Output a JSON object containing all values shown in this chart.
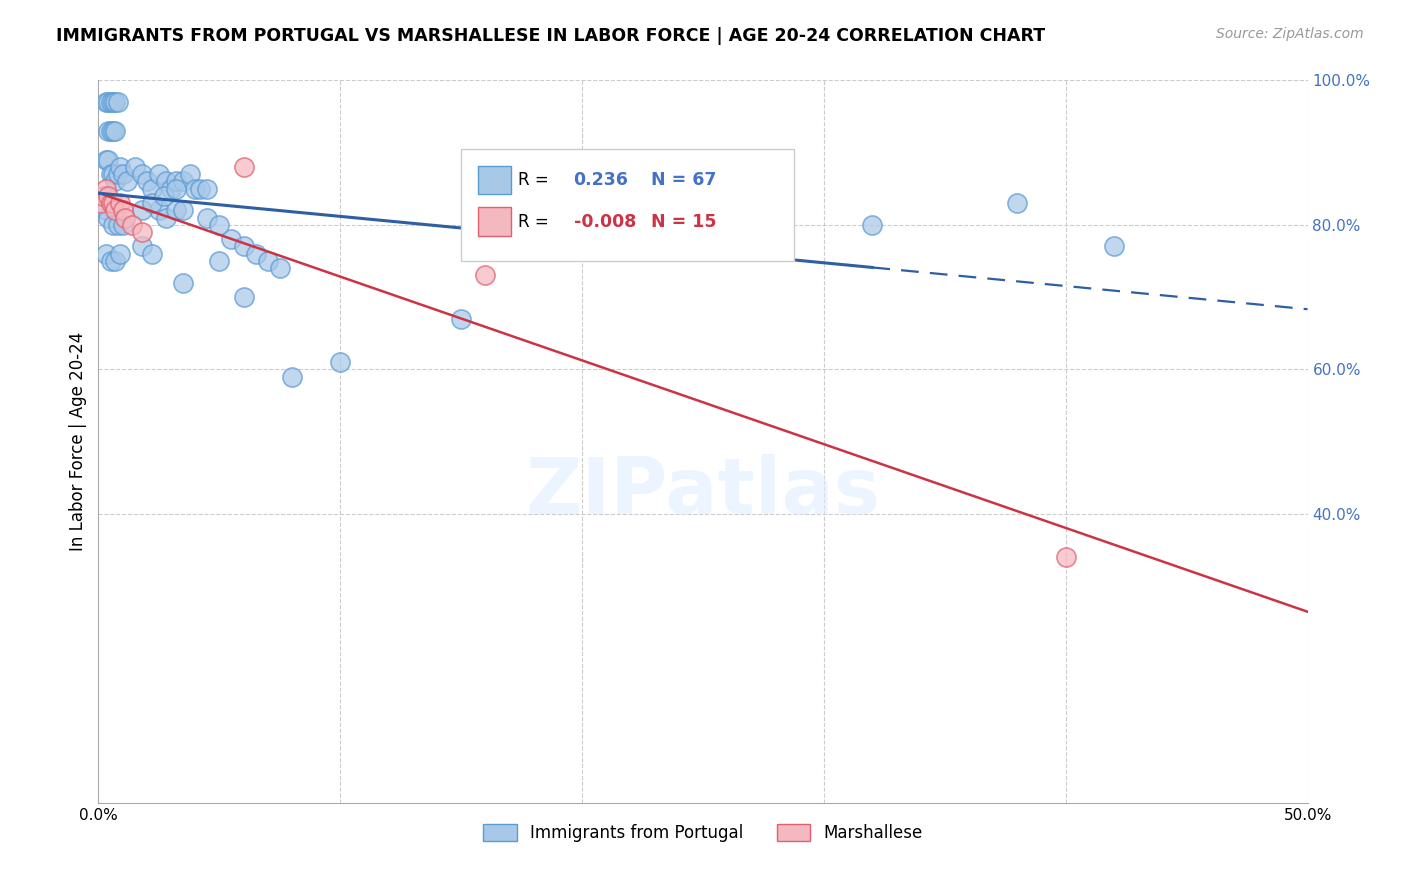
{
  "title": "IMMIGRANTS FROM PORTUGAL VS MARSHALLESE IN LABOR FORCE | AGE 20-24 CORRELATION CHART",
  "source": "Source: ZipAtlas.com",
  "ylabel": "In Labor Force | Age 20-24",
  "legend_blue_r": "0.236",
  "legend_blue_n": "67",
  "legend_pink_r": "-0.008",
  "legend_pink_n": "15",
  "legend_blue_label": "Immigrants from Portugal",
  "legend_pink_label": "Marshallese",
  "xlim": [
    0.0,
    0.5
  ],
  "ylim": [
    0.0,
    1.0
  ],
  "blue_face": "#a8c8e8",
  "blue_edge": "#5b9bd5",
  "pink_face": "#f4b8c0",
  "pink_edge": "#e06070",
  "blue_line": "#2e5fa3",
  "pink_line": "#cc3344",
  "grid_color": "#cccccc",
  "yticks": [
    0.4,
    0.6,
    0.8,
    1.0
  ],
  "ytick_labels": [
    "40.0%",
    "60.0%",
    "80.0%",
    "100.0%"
  ],
  "blue_x": [
    0.003,
    0.004,
    0.005,
    0.006,
    0.007,
    0.008,
    0.004,
    0.005,
    0.006,
    0.007,
    0.003,
    0.004,
    0.005,
    0.006,
    0.007,
    0.008,
    0.009,
    0.01,
    0.012,
    0.015,
    0.018,
    0.02,
    0.022,
    0.025,
    0.028,
    0.03,
    0.032,
    0.035,
    0.038,
    0.04,
    0.042,
    0.045,
    0.025,
    0.028,
    0.032,
    0.035,
    0.055,
    0.06,
    0.065,
    0.07,
    0.035,
    0.06,
    0.05,
    0.075,
    0.32,
    0.003,
    0.004,
    0.006,
    0.008,
    0.01,
    0.003,
    0.005,
    0.007,
    0.009,
    0.018,
    0.022,
    0.027,
    0.032,
    0.018,
    0.022,
    0.045,
    0.05,
    0.15,
    0.08,
    0.1,
    0.38,
    0.42
  ],
  "blue_y": [
    0.97,
    0.97,
    0.97,
    0.97,
    0.97,
    0.97,
    0.93,
    0.93,
    0.93,
    0.93,
    0.89,
    0.89,
    0.87,
    0.87,
    0.86,
    0.87,
    0.88,
    0.87,
    0.86,
    0.88,
    0.87,
    0.86,
    0.85,
    0.87,
    0.86,
    0.85,
    0.86,
    0.86,
    0.87,
    0.85,
    0.85,
    0.85,
    0.82,
    0.81,
    0.82,
    0.82,
    0.78,
    0.77,
    0.76,
    0.75,
    0.72,
    0.7,
    0.75,
    0.74,
    0.8,
    0.82,
    0.81,
    0.8,
    0.8,
    0.8,
    0.76,
    0.75,
    0.75,
    0.76,
    0.82,
    0.83,
    0.84,
    0.85,
    0.77,
    0.76,
    0.81,
    0.8,
    0.67,
    0.59,
    0.61,
    0.83,
    0.77
  ],
  "pink_x": [
    0.001,
    0.002,
    0.003,
    0.004,
    0.005,
    0.006,
    0.007,
    0.009,
    0.01,
    0.011,
    0.014,
    0.018,
    0.06,
    0.16,
    0.4
  ],
  "pink_y": [
    0.83,
    0.84,
    0.85,
    0.84,
    0.83,
    0.83,
    0.82,
    0.83,
    0.82,
    0.81,
    0.8,
    0.79,
    0.88,
    0.73,
    0.34
  ]
}
